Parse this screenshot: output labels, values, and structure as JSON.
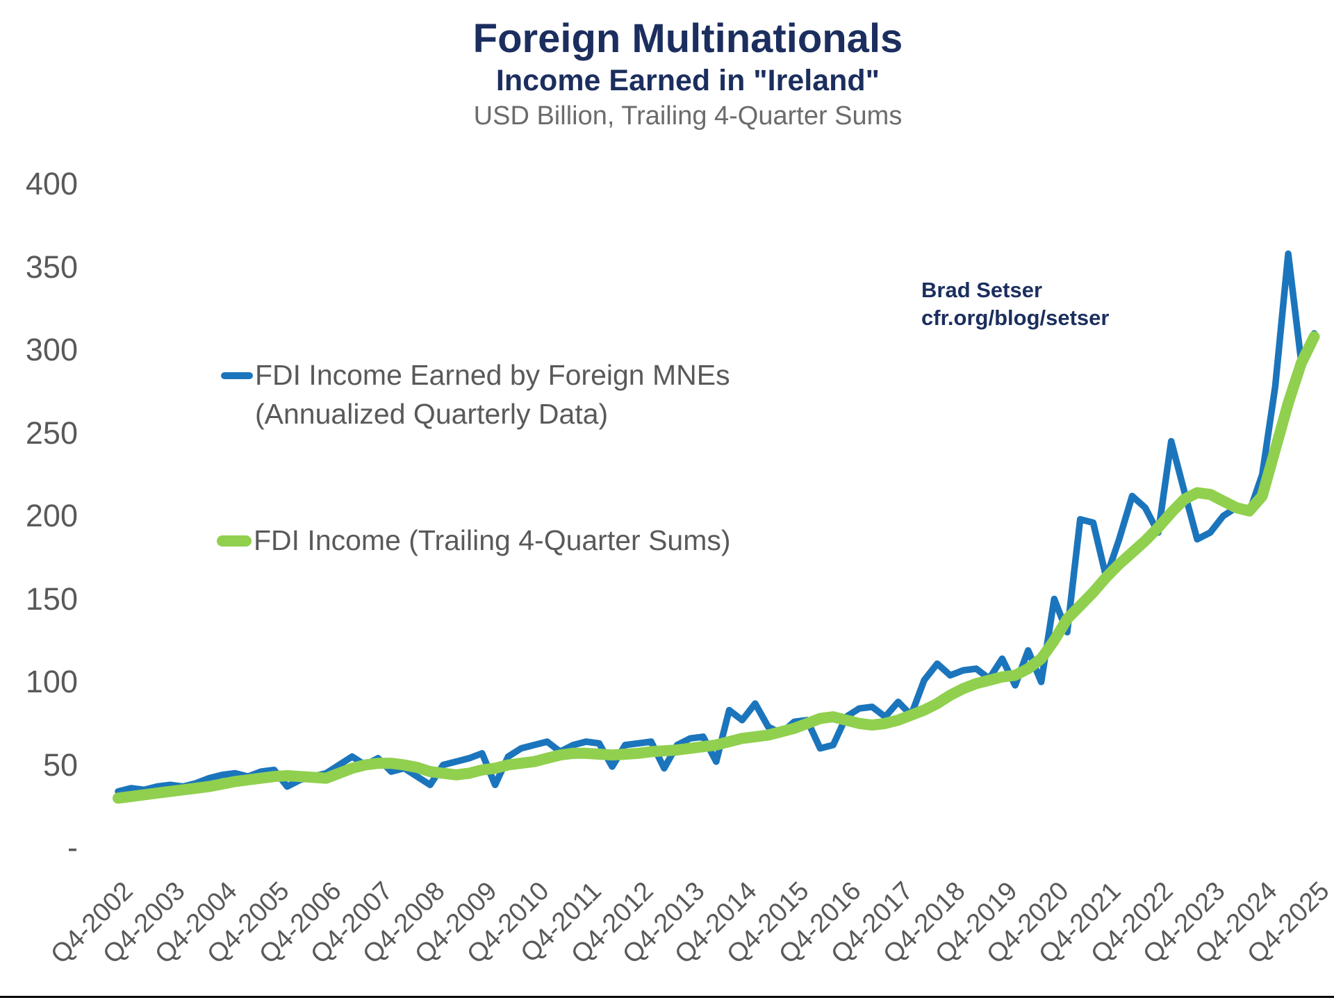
{
  "header": {
    "title": "Foreign Multinationals",
    "subtitle": "Income Earned in \"Ireland\"",
    "units_note": "USD Billion, Trailing 4-Quarter Sums"
  },
  "annotation": {
    "author": "Brad Setser",
    "source": "cfr.org/blog/setser"
  },
  "legend": {
    "series1_line1": "FDI Income Earned by Foreign MNEs",
    "series1_line2": "(Annualized Quarterly Data)",
    "series2_line1": "FDI Income (Trailing 4-Quarter Sums)"
  },
  "colors": {
    "navy": "#1b2e5e",
    "axis_gray": "#595959",
    "note_gray": "#6b6b6b",
    "blue_line": "#1b75bc",
    "green_line": "#90d04e",
    "bottom_line": "#000000"
  },
  "chart_data": {
    "type": "line",
    "title": "Foreign Multinationals",
    "subtitle": "Income Earned in \"Ireland\"",
    "ylabel": "USD Billion",
    "ylim": [
      0,
      400
    ],
    "grid": false,
    "legend_position": "inside-left",
    "x_start": "Q4-2002",
    "x_end": "Q4-2025",
    "frequency": "quarterly",
    "x_tick_labels": [
      "Q4-2002",
      "Q4-2003",
      "Q4-2004",
      "Q4-2005",
      "Q4-2006",
      "Q4-2007",
      "Q4-2008",
      "Q4-2009",
      "Q4-2010",
      "Q4-2011",
      "Q4-2012",
      "Q4-2013",
      "Q4-2014",
      "Q4-2015",
      "Q4-2016",
      "Q4-2017",
      "Q4-2018",
      "Q4-2019",
      "Q4-2020",
      "Q4-2021",
      "Q4-2022",
      "Q4-2023",
      "Q4-2024",
      "Q4-2025"
    ],
    "y_tick_labels": [
      "400",
      "350",
      "300",
      "250",
      "200",
      "150",
      "100",
      "50",
      "-"
    ],
    "y_tick_values": [
      400,
      350,
      300,
      250,
      200,
      150,
      100,
      50,
      0
    ],
    "series": [
      {
        "name": "FDI Income Earned by Foreign MNEs (Annualized Quarterly Data)",
        "color": "#1b75bc",
        "stroke_width": 9.5,
        "values": [
          34,
          36,
          35,
          37,
          38,
          37,
          39,
          42,
          44,
          45,
          43,
          46,
          47,
          37,
          41,
          43,
          45,
          50,
          55,
          50,
          54,
          46,
          48,
          43,
          38,
          50,
          52,
          54,
          57,
          38,
          55,
          60,
          62,
          64,
          58,
          62,
          64,
          63,
          49,
          62,
          63,
          64,
          48,
          62,
          66,
          67,
          52,
          83,
          77,
          87,
          73,
          69,
          76,
          77,
          60,
          62,
          79,
          84,
          85,
          79,
          88,
          80,
          101,
          111,
          104,
          107,
          108,
          102,
          114,
          98,
          119,
          100,
          150,
          130,
          198,
          196,
          163,
          186,
          212,
          205,
          190,
          245,
          215,
          186,
          190,
          200,
          205,
          202,
          225,
          278,
          358,
          293,
          310
        ]
      },
      {
        "name": "FDI Income (Trailing 4-Quarter Sums)",
        "color": "#90d04e",
        "stroke_width": 16,
        "values": [
          30,
          31,
          32,
          33,
          34,
          35,
          36,
          37,
          38.5,
          40,
          41,
          42,
          43,
          43.5,
          43,
          42.5,
          42,
          45,
          48,
          50,
          51,
          51,
          50,
          48.5,
          46,
          45,
          44,
          45,
          47,
          48,
          50,
          51,
          52,
          54,
          56,
          57,
          57,
          56.5,
          56,
          56.5,
          57,
          58,
          58.5,
          59,
          60,
          61,
          62,
          64,
          66,
          67,
          68,
          70,
          72,
          75,
          78,
          79,
          77,
          75,
          74,
          75,
          77,
          80,
          83,
          87,
          92,
          96,
          99,
          101,
          103,
          104,
          108,
          114,
          125,
          138,
          146,
          154,
          163,
          171,
          178,
          185,
          193,
          202,
          210,
          214,
          213,
          209,
          205,
          203,
          212,
          240,
          268,
          292,
          308
        ]
      }
    ]
  }
}
